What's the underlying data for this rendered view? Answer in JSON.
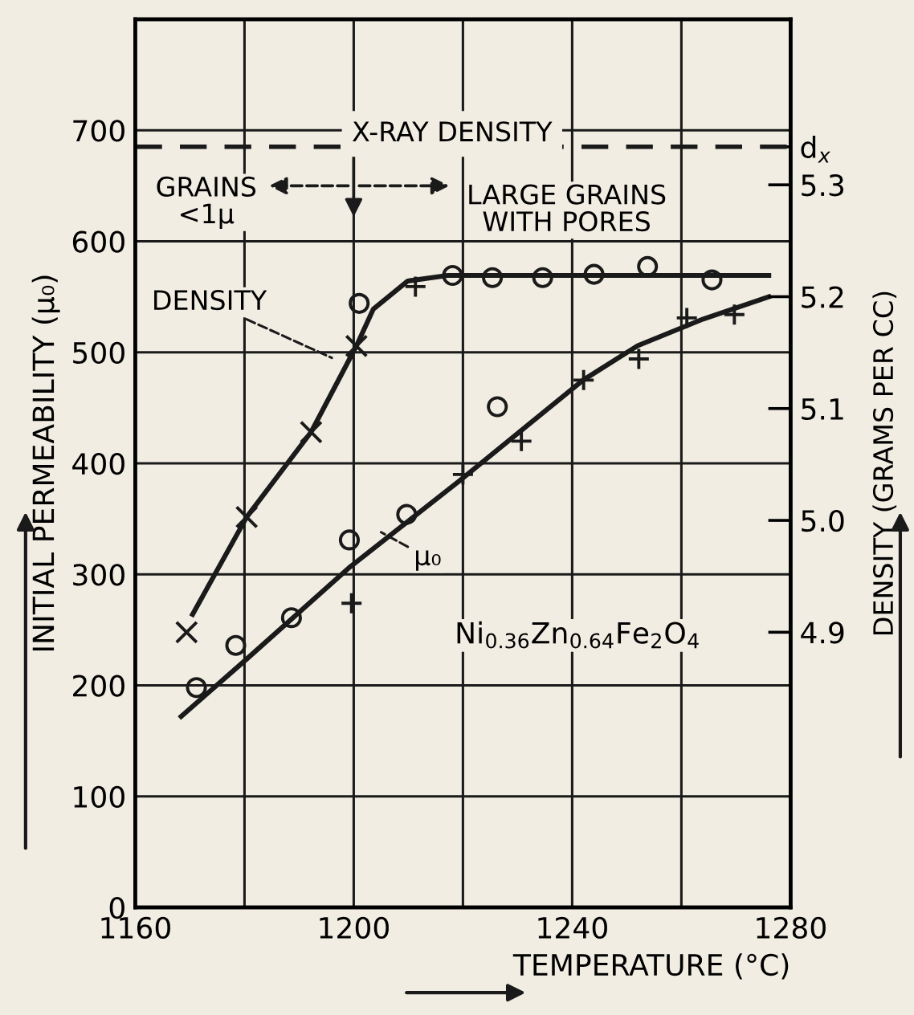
{
  "chart_data": {
    "type": "scatter",
    "xlabel": "TEMPERATURE (°C)",
    "ylabel": "INITIAL PERMEABILITY (μ₀)",
    "y2label": "DENSITY (GRAMS PER CC)",
    "xlim": [
      1160,
      1280
    ],
    "xticks": [
      1160,
      {
        "value": 1180,
        "label": null
      },
      1200,
      {
        "value": 1220,
        "label": null
      },
      1240,
      {
        "value": 1260,
        "label": null
      },
      1280
    ],
    "ylim": [
      0,
      800
    ],
    "yticks": [
      0,
      100,
      200,
      300,
      400,
      500,
      600,
      700
    ],
    "y2lim": [
      4.654,
      5.448
    ],
    "y2ticks": [
      4.9,
      {
        "value": 5.0,
        "label": "5.0"
      },
      5.1,
      5.2,
      5.3,
      {
        "value": 5.334,
        "label": "d$_{x}$"
      }
    ],
    "grid": true,
    "ref_lines": [
      {
        "axis": "y2",
        "value": 5.334,
        "label": "X-RAY DENSITY",
        "color": "#1a1a1a",
        "line_style": "dashed"
      }
    ],
    "annotations": [
      "GRAINS\n<1μ",
      "LARGE GRAINS\nWITH PORES",
      "DENSITY",
      "μ₀",
      "Ni$_{0.36}$Zn$_{0.64}$Fe$_{2}$O$_{4}$"
    ],
    "series": [
      {
        "axis": "y2",
        "marker": "x",
        "color": "#1a1a1a",
        "x": [
          1169.4,
          1180.4,
          1192.2,
          1200.5
        ],
        "values": [
          4.9,
          5.003,
          5.079,
          5.156
        ]
      },
      {
        "axis": "y2",
        "marker": "circle",
        "color": "#1a1a1a",
        "x": [
          1201,
          1218.1,
          1225.4,
          1234.6,
          1244,
          1253.8,
          1265.6
        ],
        "values": [
          5.194,
          5.219,
          5.217,
          5.217,
          5.22,
          5.227,
          5.215
        ]
      },
      {
        "axis": "y2",
        "marker": "cross",
        "color": "#1a1a1a",
        "x": [
          1211.3
        ],
        "values": [
          5.209
        ]
      },
      {
        "type": "line",
        "axis": "y2",
        "marker": "none",
        "line_style": "solid",
        "color": "#1a1a1a",
        "x": [
          1170.5,
          1180.4,
          1192.2,
          1200.5,
          1203.6,
          1209.9,
          1217.2,
          1240,
          1276
        ],
        "values": [
          4.916,
          5.003,
          5.079,
          5.156,
          5.189,
          5.214,
          5.219,
          5.219,
          5.219
        ]
      },
      {
        "marker": "circle",
        "color": "#1a1a1a",
        "x": [
          1171.2,
          1178.4,
          1188.6,
          1199.2,
          1209.7,
          1226.3
        ],
        "values": [
          198,
          236,
          261,
          331,
          354,
          451
        ]
      },
      {
        "marker": "cross",
        "color": "#1a1a1a",
        "x": [
          1199.6,
          1220,
          1230.7,
          1242.1,
          1252.2,
          1261,
          1269.7
        ],
        "values": [
          274,
          390,
          420,
          475,
          494,
          531,
          534
        ]
      },
      {
        "type": "line",
        "marker": "none",
        "line_style": "solid",
        "color": "#1a1a1a",
        "x": [
          1168.4,
          1180,
          1199.4,
          1219.3,
          1242,
          1252,
          1264,
          1276
        ],
        "values": [
          172,
          222,
          307,
          384,
          475,
          506,
          530,
          550
        ]
      }
    ]
  }
}
